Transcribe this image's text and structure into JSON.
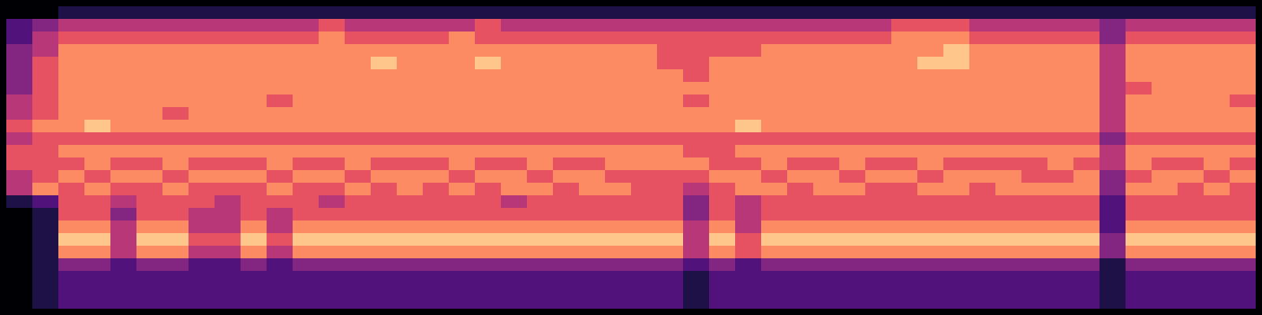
{
  "chart_data": {
    "type": "heatmap",
    "tick_labels": false,
    "cells": [
      [
        0,
        0,
        1,
        1,
        1,
        1,
        1,
        1,
        1,
        1,
        1,
        1,
        1,
        1,
        1,
        1,
        1,
        1,
        1,
        1,
        1,
        1,
        1,
        1,
        1,
        1,
        1,
        1,
        1,
        1,
        1,
        1,
        1,
        1,
        1,
        1,
        1,
        1,
        1,
        1,
        1,
        1,
        1,
        1,
        1,
        1,
        1,
        1
      ],
      [
        2,
        3,
        4,
        4,
        4,
        4,
        4,
        4,
        4,
        4,
        4,
        4,
        5,
        4,
        4,
        4,
        4,
        4,
        5,
        4,
        4,
        4,
        4,
        4,
        4,
        4,
        4,
        4,
        4,
        4,
        4,
        4,
        4,
        4,
        5,
        5,
        5,
        4,
        4,
        4,
        4,
        4,
        3,
        4,
        4,
        4,
        4,
        4
      ],
      [
        2,
        4,
        5,
        5,
        5,
        5,
        5,
        5,
        5,
        5,
        5,
        5,
        6,
        5,
        5,
        5,
        5,
        6,
        5,
        5,
        5,
        5,
        5,
        5,
        5,
        5,
        5,
        5,
        5,
        5,
        5,
        5,
        5,
        5,
        6,
        6,
        6,
        5,
        5,
        5,
        5,
        5,
        3,
        5,
        5,
        5,
        5,
        5
      ],
      [
        3,
        4,
        6,
        6,
        6,
        6,
        6,
        6,
        6,
        6,
        6,
        6,
        6,
        6,
        6,
        6,
        6,
        6,
        6,
        6,
        6,
        6,
        6,
        6,
        6,
        5,
        5,
        5,
        5,
        6,
        6,
        6,
        6,
        6,
        6,
        6,
        7,
        6,
        6,
        6,
        6,
        6,
        4,
        6,
        6,
        6,
        6,
        6
      ],
      [
        3,
        5,
        6,
        6,
        6,
        6,
        6,
        6,
        6,
        6,
        6,
        6,
        6,
        6,
        7,
        6,
        6,
        6,
        7,
        6,
        6,
        6,
        6,
        6,
        6,
        5,
        5,
        6,
        6,
        6,
        6,
        6,
        6,
        6,
        6,
        7,
        7,
        6,
        6,
        6,
        6,
        6,
        4,
        6,
        6,
        6,
        6,
        6
      ],
      [
        3,
        5,
        6,
        6,
        6,
        6,
        6,
        6,
        6,
        6,
        6,
        6,
        6,
        6,
        6,
        6,
        6,
        6,
        6,
        6,
        6,
        6,
        6,
        6,
        6,
        6,
        5,
        6,
        6,
        6,
        6,
        6,
        6,
        6,
        6,
        6,
        6,
        6,
        6,
        6,
        6,
        6,
        4,
        6,
        6,
        6,
        6,
        6
      ],
      [
        3,
        5,
        6,
        6,
        6,
        6,
        6,
        6,
        6,
        6,
        6,
        6,
        6,
        6,
        6,
        6,
        6,
        6,
        6,
        6,
        6,
        6,
        6,
        6,
        6,
        6,
        6,
        6,
        6,
        6,
        6,
        6,
        6,
        6,
        6,
        6,
        6,
        6,
        6,
        6,
        6,
        6,
        4,
        5,
        6,
        6,
        6,
        6
      ],
      [
        4,
        5,
        6,
        6,
        6,
        6,
        6,
        6,
        6,
        6,
        5,
        6,
        6,
        6,
        6,
        6,
        6,
        6,
        6,
        6,
        6,
        6,
        6,
        6,
        6,
        6,
        5,
        6,
        6,
        6,
        6,
        6,
        6,
        6,
        6,
        6,
        6,
        6,
        6,
        6,
        6,
        6,
        4,
        6,
        6,
        6,
        6,
        5
      ],
      [
        4,
        5,
        6,
        6,
        6,
        6,
        5,
        6,
        6,
        6,
        6,
        6,
        6,
        6,
        6,
        6,
        6,
        6,
        6,
        6,
        6,
        6,
        6,
        6,
        6,
        6,
        6,
        6,
        6,
        6,
        6,
        6,
        6,
        6,
        6,
        6,
        6,
        6,
        6,
        6,
        6,
        6,
        4,
        6,
        6,
        6,
        6,
        6
      ],
      [
        5,
        6,
        6,
        7,
        6,
        6,
        6,
        6,
        6,
        6,
        6,
        6,
        6,
        6,
        6,
        6,
        6,
        6,
        6,
        6,
        6,
        6,
        6,
        6,
        6,
        6,
        6,
        6,
        7,
        6,
        6,
        6,
        6,
        6,
        6,
        6,
        6,
        6,
        6,
        6,
        6,
        6,
        4,
        6,
        6,
        6,
        6,
        6
      ],
      [
        4,
        5,
        5,
        5,
        5,
        5,
        5,
        5,
        5,
        5,
        5,
        5,
        5,
        5,
        5,
        5,
        5,
        5,
        5,
        5,
        5,
        5,
        5,
        5,
        5,
        5,
        5,
        5,
        5,
        5,
        5,
        5,
        5,
        5,
        5,
        5,
        5,
        5,
        5,
        5,
        5,
        5,
        3,
        5,
        5,
        5,
        5,
        5
      ],
      [
        5,
        5,
        6,
        6,
        6,
        6,
        6,
        6,
        6,
        6,
        6,
        6,
        6,
        6,
        6,
        6,
        6,
        6,
        6,
        6,
        6,
        6,
        6,
        6,
        6,
        6,
        5,
        5,
        6,
        6,
        6,
        6,
        6,
        6,
        6,
        6,
        6,
        6,
        6,
        6,
        6,
        6,
        4,
        6,
        6,
        6,
        6,
        6
      ],
      [
        5,
        5,
        5,
        6,
        5,
        5,
        6,
        5,
        5,
        5,
        6,
        5,
        5,
        6,
        5,
        5,
        5,
        6,
        5,
        5,
        6,
        5,
        5,
        6,
        6,
        6,
        6,
        5,
        5,
        6,
        5,
        5,
        6,
        5,
        5,
        6,
        5,
        5,
        5,
        5,
        6,
        5,
        4,
        6,
        5,
        5,
        6,
        5
      ],
      [
        4,
        5,
        6,
        5,
        6,
        6,
        5,
        6,
        6,
        6,
        5,
        6,
        6,
        5,
        6,
        6,
        6,
        5,
        6,
        6,
        5,
        6,
        6,
        5,
        5,
        5,
        5,
        6,
        6,
        5,
        6,
        6,
        5,
        6,
        6,
        5,
        6,
        6,
        6,
        5,
        5,
        6,
        3,
        5,
        6,
        6,
        5,
        6
      ],
      [
        4,
        6,
        5,
        6,
        5,
        5,
        6,
        5,
        5,
        5,
        6,
        5,
        5,
        6,
        5,
        6,
        5,
        6,
        5,
        6,
        6,
        5,
        6,
        6,
        5,
        5,
        4,
        5,
        6,
        6,
        5,
        6,
        6,
        5,
        5,
        6,
        6,
        5,
        6,
        6,
        6,
        6,
        3,
        6,
        6,
        5,
        6,
        5
      ],
      [
        1,
        2,
        5,
        5,
        4,
        5,
        5,
        5,
        4,
        5,
        5,
        5,
        4,
        5,
        5,
        5,
        5,
        5,
        5,
        4,
        5,
        5,
        5,
        5,
        5,
        5,
        3,
        5,
        4,
        5,
        5,
        5,
        5,
        5,
        5,
        5,
        5,
        5,
        5,
        5,
        5,
        5,
        2,
        5,
        5,
        5,
        5,
        5
      ],
      [
        0,
        1,
        5,
        5,
        3,
        5,
        5,
        4,
        4,
        5,
        4,
        5,
        5,
        5,
        5,
        5,
        5,
        5,
        5,
        5,
        5,
        5,
        5,
        5,
        5,
        5,
        3,
        5,
        4,
        5,
        5,
        5,
        5,
        5,
        5,
        5,
        5,
        5,
        5,
        5,
        5,
        5,
        2,
        5,
        5,
        5,
        5,
        5
      ],
      [
        0,
        1,
        6,
        6,
        4,
        6,
        6,
        4,
        4,
        6,
        4,
        6,
        6,
        6,
        6,
        6,
        6,
        6,
        6,
        6,
        6,
        6,
        6,
        6,
        6,
        6,
        4,
        6,
        4,
        6,
        6,
        6,
        6,
        6,
        6,
        6,
        6,
        6,
        6,
        6,
        6,
        6,
        2,
        6,
        6,
        6,
        6,
        6
      ],
      [
        0,
        1,
        7,
        7,
        4,
        7,
        7,
        5,
        5,
        7,
        5,
        7,
        7,
        7,
        7,
        7,
        7,
        7,
        7,
        7,
        7,
        7,
        7,
        7,
        7,
        7,
        4,
        7,
        5,
        7,
        7,
        7,
        7,
        7,
        7,
        7,
        7,
        7,
        7,
        7,
        7,
        7,
        3,
        7,
        7,
        7,
        7,
        7
      ],
      [
        0,
        1,
        6,
        6,
        4,
        6,
        6,
        4,
        4,
        6,
        4,
        6,
        6,
        6,
        6,
        6,
        6,
        6,
        6,
        6,
        6,
        6,
        6,
        6,
        6,
        6,
        4,
        6,
        5,
        6,
        6,
        6,
        6,
        6,
        6,
        6,
        6,
        6,
        6,
        6,
        6,
        6,
        3,
        6,
        6,
        6,
        6,
        6
      ],
      [
        0,
        1,
        3,
        3,
        2,
        3,
        3,
        2,
        2,
        3,
        2,
        3,
        3,
        3,
        3,
        3,
        3,
        3,
        3,
        3,
        3,
        3,
        3,
        3,
        3,
        3,
        2,
        3,
        2,
        3,
        3,
        3,
        3,
        3,
        3,
        3,
        3,
        3,
        3,
        3,
        3,
        3,
        1,
        3,
        3,
        3,
        3,
        3
      ],
      [
        0,
        1,
        2,
        2,
        2,
        2,
        2,
        2,
        2,
        2,
        2,
        2,
        2,
        2,
        2,
        2,
        2,
        2,
        2,
        2,
        2,
        2,
        2,
        2,
        2,
        2,
        1,
        2,
        2,
        2,
        2,
        2,
        2,
        2,
        2,
        2,
        2,
        2,
        2,
        2,
        2,
        2,
        1,
        2,
        2,
        2,
        2,
        2
      ],
      [
        0,
        1,
        2,
        2,
        2,
        2,
        2,
        2,
        2,
        2,
        2,
        2,
        2,
        2,
        2,
        2,
        2,
        2,
        2,
        2,
        2,
        2,
        2,
        2,
        2,
        2,
        1,
        2,
        2,
        2,
        2,
        2,
        2,
        2,
        2,
        2,
        2,
        2,
        2,
        2,
        2,
        2,
        1,
        2,
        2,
        2,
        2,
        2
      ],
      [
        0,
        1,
        2,
        2,
        2,
        2,
        2,
        2,
        2,
        2,
        2,
        2,
        2,
        2,
        2,
        2,
        2,
        2,
        2,
        2,
        2,
        2,
        2,
        2,
        2,
        2,
        1,
        2,
        2,
        2,
        2,
        2,
        2,
        2,
        2,
        2,
        2,
        2,
        2,
        2,
        2,
        2,
        1,
        2,
        2,
        2,
        2,
        2
      ]
    ]
  }
}
